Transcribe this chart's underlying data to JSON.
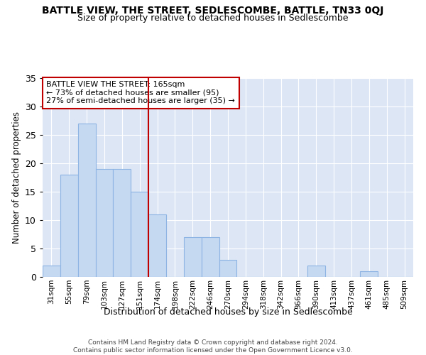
{
  "title1": "BATTLE VIEW, THE STREET, SEDLESCOMBE, BATTLE, TN33 0QJ",
  "title2": "Size of property relative to detached houses in Sedlescombe",
  "xlabel": "Distribution of detached houses by size in Sedlescombe",
  "ylabel": "Number of detached properties",
  "footnote": "Contains HM Land Registry data © Crown copyright and database right 2024.\nContains public sector information licensed under the Open Government Licence v3.0.",
  "bar_labels": [
    "31sqm",
    "55sqm",
    "79sqm",
    "103sqm",
    "127sqm",
    "151sqm",
    "174sqm",
    "198sqm",
    "222sqm",
    "246sqm",
    "270sqm",
    "294sqm",
    "318sqm",
    "342sqm",
    "366sqm",
    "390sqm",
    "413sqm",
    "437sqm",
    "461sqm",
    "485sqm",
    "509sqm"
  ],
  "bar_values": [
    2,
    18,
    27,
    19,
    19,
    15,
    11,
    0,
    7,
    7,
    3,
    0,
    0,
    0,
    0,
    2,
    0,
    0,
    1,
    0,
    0
  ],
  "bar_color": "#c5d9f1",
  "bar_edge_color": "#8db4e2",
  "vline_x": 6,
  "vline_color": "#c00000",
  "annotation_line1": "BATTLE VIEW THE STREET: 165sqm",
  "annotation_line2": "← 73% of detached houses are smaller (95)",
  "annotation_line3": "27% of semi-detached houses are larger (35) →",
  "annotation_box_color": "#c00000",
  "ylim": [
    0,
    35
  ],
  "yticks": [
    0,
    5,
    10,
    15,
    20,
    25,
    30,
    35
  ],
  "background_color": "#ffffff",
  "plot_bg_color": "#dce6f5",
  "title1_fontsize": 10,
  "title2_fontsize": 9
}
